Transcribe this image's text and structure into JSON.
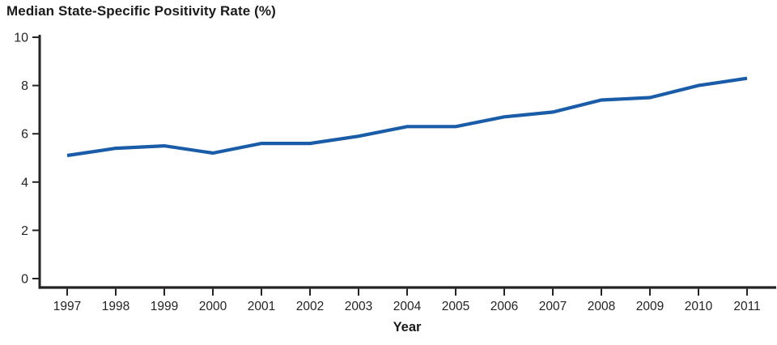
{
  "title": "Median State-Specific Positivity Rate (%)",
  "chart_data": {
    "type": "line",
    "title": "Median State-Specific Positivity Rate (%)",
    "x": [
      1997,
      1998,
      1999,
      2000,
      2001,
      2002,
      2003,
      2004,
      2005,
      2006,
      2007,
      2008,
      2009,
      2010,
      2011
    ],
    "values": [
      5.1,
      5.4,
      5.5,
      5.2,
      5.6,
      5.6,
      5.9,
      6.3,
      6.3,
      6.7,
      6.9,
      7.4,
      7.5,
      8.0,
      8.3
    ],
    "xlabel": "Year",
    "ylabel": "",
    "ylim": [
      0,
      10
    ],
    "yticks": [
      0,
      2,
      4,
      6,
      8,
      10
    ],
    "grid": false,
    "legend": "none"
  },
  "colors": {
    "line": "#1b5ca8",
    "axis": "#262324",
    "text": "#262324",
    "background": "#ffffff"
  }
}
